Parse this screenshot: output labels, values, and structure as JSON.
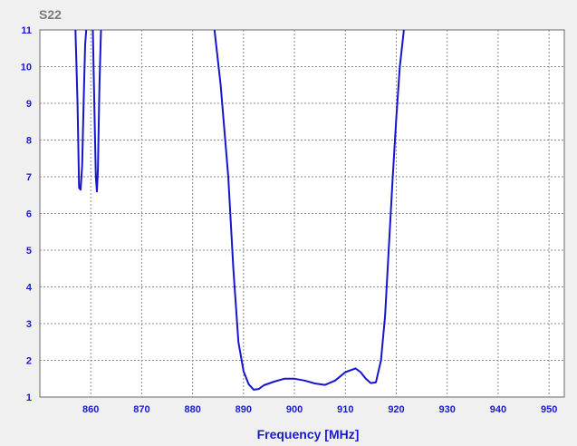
{
  "chart_data": {
    "type": "line",
    "title": "S22",
    "xlabel": "Frequency [MHz]",
    "ylabel": "",
    "xlim": [
      850,
      953
    ],
    "ylim": [
      1,
      11
    ],
    "x_ticks": [
      860,
      870,
      880,
      890,
      900,
      910,
      920,
      930,
      940,
      950
    ],
    "y_ticks": [
      1,
      2,
      3,
      4,
      5,
      6,
      7,
      8,
      9,
      10,
      11
    ],
    "grid": true,
    "legend": "none",
    "colors": {
      "line": "#1515cc",
      "grid": "#8c8c8c",
      "plot_bg": "#ffffff",
      "page_bg": "#f0f0f0",
      "tick_text": "#1a1acc",
      "title_text": "#7a7a7a"
    },
    "series": [
      {
        "segments": [
          {
            "x": [
              857.0,
              857.4,
              857.7,
              858.0,
              858.3,
              858.6,
              858.9,
              859.1
            ],
            "y": [
              11.0,
              9.0,
              6.7,
              6.65,
              7.3,
              9.0,
              10.6,
              11.0
            ]
          },
          {
            "x": [
              860.4,
              860.7,
              861.0,
              861.2,
              861.4,
              861.7,
              862.0
            ],
            "y": [
              11.0,
              9.0,
              7.0,
              6.6,
              7.2,
              9.5,
              11.0
            ]
          },
          {
            "x": [
              884.3,
              885.5,
              887.0,
              888.0,
              889.0,
              890.0,
              891.0,
              892.0,
              893.0,
              894.0,
              896.0,
              898.0,
              900.0,
              902.0,
              904.0,
              906.0,
              908.0,
              910.0,
              912.0,
              913.0,
              914.0,
              915.0,
              916.0,
              917.0,
              917.8,
              918.5,
              919.3,
              920.0,
              920.7,
              921.5
            ],
            "y": [
              11.0,
              9.5,
              7.0,
              4.5,
              2.5,
              1.7,
              1.35,
              1.2,
              1.22,
              1.32,
              1.42,
              1.5,
              1.5,
              1.45,
              1.37,
              1.33,
              1.45,
              1.68,
              1.78,
              1.68,
              1.5,
              1.38,
              1.4,
              2.0,
              3.2,
              5.0,
              7.0,
              8.6,
              10.0,
              11.0
            ]
          }
        ]
      }
    ]
  }
}
